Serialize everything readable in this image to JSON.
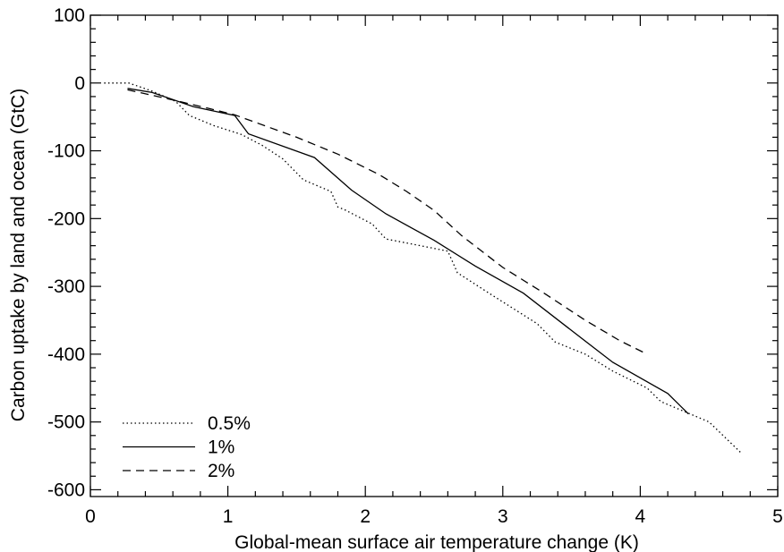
{
  "chart_data": {
    "type": "line",
    "title": "",
    "xlabel": "Global-mean surface air temperature change (K)",
    "ylabel": "Carbon uptake by land and ocean (GtC)",
    "xlim": [
      0,
      5
    ],
    "ylim": [
      -610,
      100
    ],
    "x_ticks": [
      0,
      1,
      2,
      3,
      4,
      5
    ],
    "x_tick_labels": [
      "0",
      "1",
      "2",
      "3",
      "4",
      "5"
    ],
    "y_ticks": [
      100,
      0,
      -100,
      -200,
      -300,
      -400,
      -500,
      -600
    ],
    "y_tick_labels": [
      "100",
      "0",
      "-100",
      "-200",
      "-300",
      "-400",
      "-500",
      "-600"
    ],
    "grid": false,
    "legend_position": "bottom-left",
    "series": [
      {
        "name": "0.5%",
        "style": "dotted",
        "color": "#000000",
        "points": [
          [
            0.1,
            0
          ],
          [
            0.28,
            0
          ],
          [
            0.45,
            -12
          ],
          [
            0.62,
            -27
          ],
          [
            0.72,
            -48
          ],
          [
            0.9,
            -63
          ],
          [
            1.1,
            -76
          ],
          [
            1.25,
            -92
          ],
          [
            1.4,
            -112
          ],
          [
            1.55,
            -143
          ],
          [
            1.75,
            -160
          ],
          [
            1.8,
            -183
          ],
          [
            1.85,
            -187
          ],
          [
            2.05,
            -208
          ],
          [
            2.15,
            -230
          ],
          [
            2.4,
            -240
          ],
          [
            2.6,
            -248
          ],
          [
            2.67,
            -280
          ],
          [
            2.9,
            -310
          ],
          [
            3.25,
            -355
          ],
          [
            3.38,
            -382
          ],
          [
            3.6,
            -400
          ],
          [
            3.8,
            -425
          ],
          [
            4.05,
            -450
          ],
          [
            4.15,
            -470
          ],
          [
            4.5,
            -500
          ],
          [
            4.73,
            -545
          ]
        ]
      },
      {
        "name": "1%",
        "style": "solid",
        "color": "#000000",
        "points": [
          [
            0.27,
            -8
          ],
          [
            0.45,
            -14
          ],
          [
            0.75,
            -35
          ],
          [
            1.05,
            -48
          ],
          [
            1.15,
            -75
          ],
          [
            1.63,
            -110
          ],
          [
            1.9,
            -158
          ],
          [
            2.15,
            -193
          ],
          [
            2.5,
            -232
          ],
          [
            2.8,
            -270
          ],
          [
            3.15,
            -310
          ],
          [
            3.5,
            -365
          ],
          [
            3.8,
            -412
          ],
          [
            4.2,
            -458
          ],
          [
            4.35,
            -488
          ]
        ]
      },
      {
        "name": "2%",
        "style": "dashed",
        "color": "#000000",
        "points": [
          [
            0.27,
            -10
          ],
          [
            0.6,
            -25
          ],
          [
            0.85,
            -37
          ],
          [
            1.05,
            -47
          ],
          [
            1.5,
            -80
          ],
          [
            1.8,
            -105
          ],
          [
            2.1,
            -135
          ],
          [
            2.3,
            -160
          ],
          [
            2.5,
            -188
          ],
          [
            2.7,
            -225
          ],
          [
            3.0,
            -272
          ],
          [
            3.3,
            -310
          ],
          [
            3.6,
            -350
          ],
          [
            3.85,
            -380
          ],
          [
            4.05,
            -400
          ]
        ]
      }
    ]
  }
}
